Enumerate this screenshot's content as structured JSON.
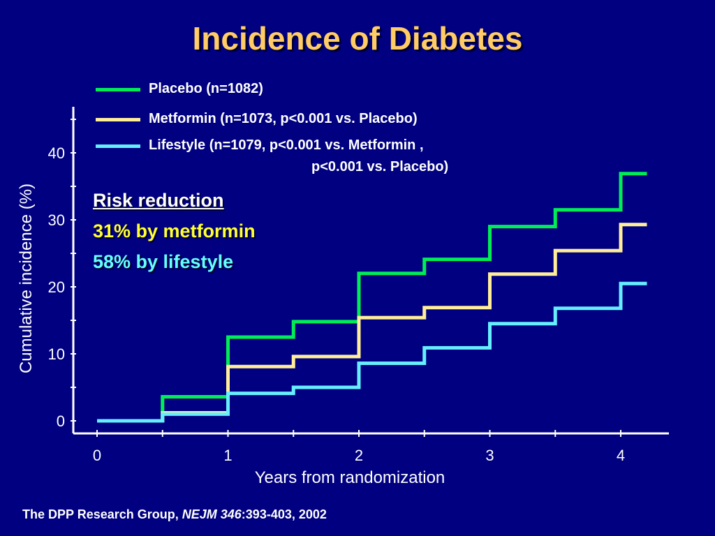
{
  "slide": {
    "title": "Incidence of Diabetes",
    "risk_reduction": {
      "heading": "Risk reduction",
      "metformin": "31% by metformin",
      "lifestyle": "58% by lifestyle"
    },
    "citation": {
      "prefix": "The DPP Research Group, ",
      "journal": "NEJM 346",
      "suffix": ":393-403, 2002"
    }
  },
  "chart_data": {
    "type": "line",
    "step": true,
    "xlabel": "Years from randomization",
    "ylabel": "Cumulative incidence (%)",
    "xlim": [
      0,
      4.2
    ],
    "ylim": [
      0,
      45
    ],
    "x_ticks": [
      "0",
      "1",
      "2",
      "3",
      "4"
    ],
    "y_ticks": [
      "0",
      "10",
      "20",
      "30",
      "40"
    ],
    "grid": false,
    "legend_position": "top",
    "legend": [
      {
        "label": "Placebo (n=1082)",
        "color": "#00EE55"
      },
      {
        "label": "Metformin (n=1073, p<0.001 vs. Placebo)",
        "color": "#FFEE99"
      },
      {
        "label": "Lifestyle (n=1079, p<0.001 vs. Metformin ,",
        "label_cont": "p<0.001 vs. Placebo)",
        "color": "#66EEFF"
      }
    ],
    "series": [
      {
        "name": "Placebo",
        "color": "#00EE55",
        "x": [
          0,
          0.5,
          1.0,
          1.5,
          2.0,
          2.5,
          3.0,
          3.5,
          4.0,
          4.2
        ],
        "y": [
          0,
          3.6,
          12.5,
          14.8,
          22.0,
          24.1,
          29.0,
          31.5,
          36.9,
          36.9
        ]
      },
      {
        "name": "Metformin",
        "color": "#FFEE99",
        "x": [
          0,
          0.5,
          1.0,
          1.5,
          2.0,
          2.5,
          3.0,
          3.5,
          4.0,
          4.2
        ],
        "y": [
          0,
          1.2,
          8.1,
          9.6,
          15.4,
          16.9,
          21.9,
          25.4,
          29.3,
          29.3
        ]
      },
      {
        "name": "Lifestyle",
        "color": "#66EEFF",
        "x": [
          0,
          0.5,
          1.0,
          1.5,
          2.0,
          2.5,
          3.0,
          3.5,
          4.0,
          4.2
        ],
        "y": [
          0,
          1.0,
          4.1,
          5.0,
          8.6,
          10.9,
          14.5,
          16.8,
          20.5,
          20.5
        ]
      }
    ]
  }
}
